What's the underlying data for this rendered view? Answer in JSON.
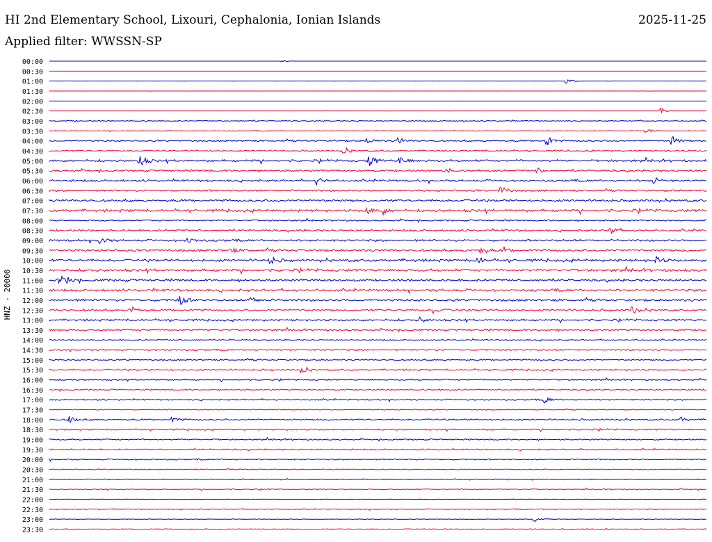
{
  "header": {
    "title": "HI 2nd Elementary School, Lixouri, Cephalonia, Ionian Islands",
    "date": "2025-11-25",
    "filter": "Applied filter: WWSSN-SP"
  },
  "colors": {
    "even_trace": "#0000cc",
    "odd_trace": "#e8003a"
  },
  "chart_data": {
    "type": "line",
    "title": "HI 2nd Elementary School, Lixouri, Cephalonia, Ionian Islands",
    "ylabel": "HNZ - 20000",
    "xlabel": "",
    "grid": false,
    "legend": "none",
    "row_labels": [
      "00:00",
      "00:30",
      "01:00",
      "01:30",
      "02:00",
      "02:30",
      "03:00",
      "03:30",
      "04:00",
      "04:30",
      "05:00",
      "05:30",
      "06:00",
      "06:30",
      "07:00",
      "07:30",
      "08:00",
      "08:30",
      "09:00",
      "09:30",
      "10:00",
      "10:30",
      "11:00",
      "11:30",
      "12:00",
      "12:30",
      "13:00",
      "13:30",
      "14:00",
      "14:30",
      "15:00",
      "15:30",
      "16:00",
      "16:30",
      "17:00",
      "17:30",
      "18:00",
      "18:30",
      "19:00",
      "19:30",
      "20:00",
      "20:30",
      "21:00",
      "21:30",
      "22:00",
      "22:30",
      "23:00",
      "23:30"
    ],
    "noise_level": [
      0,
      0,
      0.1,
      0.1,
      0,
      0.1,
      1,
      0.6,
      1.5,
      1.3,
      2,
      1.7,
      1.8,
      1.6,
      2.1,
      2.3,
      1.3,
      1.8,
      1.8,
      2,
      2.3,
      2.2,
      2,
      2.1,
      2,
      1.8,
      1.7,
      1.5,
      1.2,
      1.3,
      1.3,
      1.4,
      1.2,
      1.2,
      1.2,
      0.8,
      1.4,
      1.3,
      1.2,
      1.2,
      1.1,
      0.8,
      0.9,
      0.8,
      0.5,
      0.8,
      0.5,
      0.9
    ],
    "events": [
      {
        "row": 0,
        "minute": 10.6,
        "amp": 2
      },
      {
        "row": 2,
        "minute": 23.6,
        "amp": 5
      },
      {
        "row": 5,
        "minute": 27.9,
        "amp": 5
      },
      {
        "row": 7,
        "minute": 27.2,
        "amp": 5
      },
      {
        "row": 8,
        "minute": 14.5,
        "amp": 5
      },
      {
        "row": 8,
        "minute": 15.9,
        "amp": 5
      },
      {
        "row": 8,
        "minute": 22.7,
        "amp": 9
      },
      {
        "row": 8,
        "minute": 28.4,
        "amp": 9
      },
      {
        "row": 9,
        "minute": 13.4,
        "amp": 6
      },
      {
        "row": 10,
        "minute": 4.1,
        "amp": 10
      },
      {
        "row": 10,
        "minute": 14.6,
        "amp": 9
      },
      {
        "row": 10,
        "minute": 16.0,
        "amp": 7
      },
      {
        "row": 11,
        "minute": 18.0,
        "amp": 5
      },
      {
        "row": 11,
        "minute": 22.2,
        "amp": 5
      },
      {
        "row": 12,
        "minute": 12.2,
        "amp": 6
      },
      {
        "row": 12,
        "minute": 27.6,
        "amp": 6
      },
      {
        "row": 13,
        "minute": 20.6,
        "amp": 9
      },
      {
        "row": 15,
        "minute": 14.5,
        "amp": 5
      },
      {
        "row": 15,
        "minute": 15.2,
        "amp": 6
      },
      {
        "row": 17,
        "minute": 25.6,
        "amp": 6
      },
      {
        "row": 18,
        "minute": 2.3,
        "amp": 5
      },
      {
        "row": 18,
        "minute": 6.3,
        "amp": 5
      },
      {
        "row": 19,
        "minute": 8.3,
        "amp": 4
      },
      {
        "row": 19,
        "minute": 19.7,
        "amp": 6
      },
      {
        "row": 19,
        "minute": 20.7,
        "amp": 5
      },
      {
        "row": 20,
        "minute": 10.0,
        "amp": 7
      },
      {
        "row": 20,
        "minute": 19.5,
        "amp": 6
      },
      {
        "row": 20,
        "minute": 27.7,
        "amp": 5
      },
      {
        "row": 22,
        "minute": 0.4,
        "amp": 5
      },
      {
        "row": 22,
        "minute": 0.8,
        "amp": 5
      },
      {
        "row": 24,
        "minute": 5.9,
        "amp": 9
      },
      {
        "row": 24,
        "minute": 9.2,
        "amp": 5
      },
      {
        "row": 25,
        "minute": 3.7,
        "amp": 6
      },
      {
        "row": 25,
        "minute": 17.5,
        "amp": 5
      },
      {
        "row": 25,
        "minute": 26.6,
        "amp": 7
      },
      {
        "row": 26,
        "minute": 16.9,
        "amp": 5
      },
      {
        "row": 31,
        "minute": 11.5,
        "amp": 7
      },
      {
        "row": 34,
        "minute": 22.6,
        "amp": 6
      },
      {
        "row": 36,
        "minute": 0.9,
        "amp": 5
      },
      {
        "row": 36,
        "minute": 5.6,
        "amp": 5
      },
      {
        "row": 36,
        "minute": 28.8,
        "amp": 4
      },
      {
        "row": 46,
        "minute": 22.1,
        "amp": 5
      }
    ]
  }
}
